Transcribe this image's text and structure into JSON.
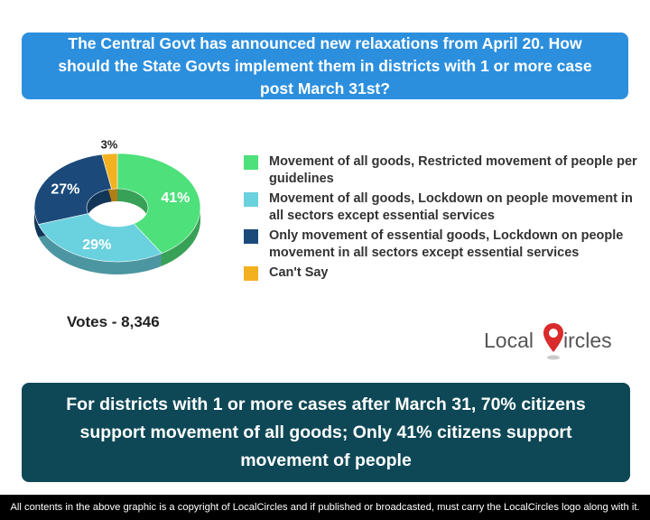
{
  "question": "The Central Govt has announced new relaxations from April 20. How should the State Govts implement them in districts with 1 or more case post March 31st?",
  "chart_data": {
    "type": "pie",
    "donut": true,
    "slices": [
      {
        "label": "Movement of all goods, Restricted movement of people per guidelines",
        "value": 41,
        "display": "41%",
        "color": "#4ee07a"
      },
      {
        "label": "Movement of all goods, Lockdown on people movement in all sectors except essential services",
        "value": 29,
        "display": "29%",
        "color": "#6ad1df"
      },
      {
        "label": "Only movement of essential goods, Lockdown on people movement in all sectors except essential services",
        "value": 27,
        "display": "27%",
        "color": "#1b4a7a"
      },
      {
        "label": "Can't Say",
        "value": 3,
        "display": "3%",
        "color": "#f4b11f"
      }
    ],
    "legend_placement": "right"
  },
  "votes": "Votes - 8,346",
  "logo": {
    "part1": "Local",
    "part2": "ircles"
  },
  "finding": "For districts with 1 or more cases after March 31, 70% citizens support movement of all goods; Only 41% citizens support movement of people",
  "footer": "All contents in the above graphic is a copyright of LocalCircles and if published or broadcasted, must carry the LocalCircles logo along with it."
}
